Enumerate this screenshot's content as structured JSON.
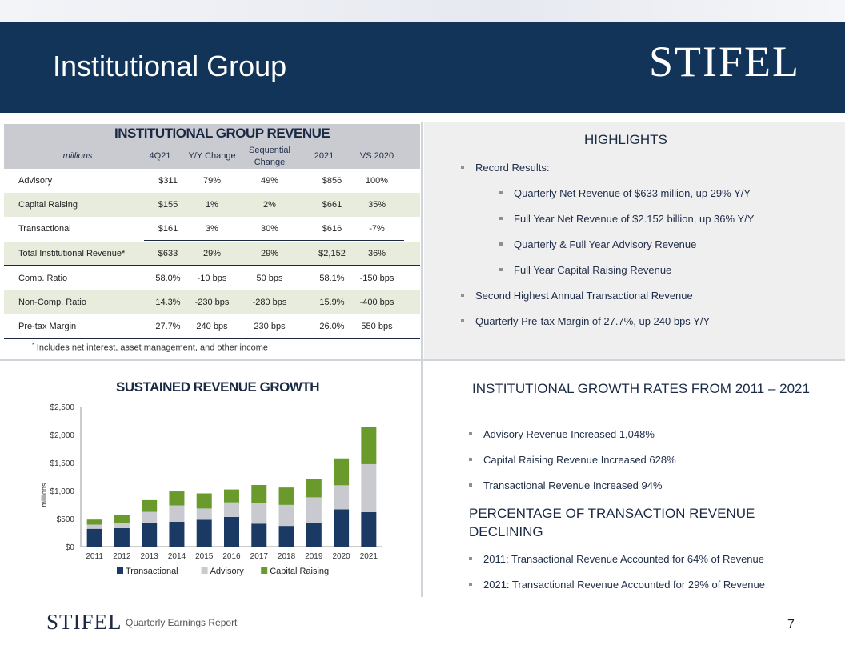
{
  "slide": {
    "title": "Institutional Group",
    "logo": "STIFEL",
    "footer_logo": "STIFEL",
    "footer_text": "Quarterly Earnings Report",
    "page_number": "7"
  },
  "table": {
    "title": "INSTITUTIONAL GROUP REVENUE",
    "headers": [
      "millions",
      "4Q21",
      "Y/Y Change",
      "Sequential Change",
      "2021",
      "VS 2020"
    ],
    "rows": [
      [
        "Advisory",
        "$311",
        "79%",
        "49%",
        "$856",
        "100%"
      ],
      [
        "Capital Raising",
        "$155",
        "1%",
        "2%",
        "$661",
        "35%"
      ],
      [
        "Transactional",
        "$161",
        "3%",
        "30%",
        "$616",
        "-7%"
      ],
      [
        "Total Institutional Revenue*",
        "$633",
        "29%",
        "29%",
        "$2,152",
        "36%"
      ],
      [
        "Comp. Ratio",
        "58.0%",
        "-10 bps",
        "50 bps",
        "58.1%",
        "-150 bps"
      ],
      [
        "Non-Comp. Ratio",
        "14.3%",
        "-230 bps",
        "-280 bps",
        "15.9%",
        "-400 bps"
      ],
      [
        "Pre-tax Margin",
        "27.7%",
        "240 bps",
        "230 bps",
        "26.0%",
        "550 bps"
      ]
    ],
    "footnote_mark": "*",
    "footnote": "Includes net interest, asset management, and other income"
  },
  "highlights": {
    "title": "HIGHLIGHTS",
    "items": [
      "Record Results:",
      "Quarterly Net Revenue of $633 million, up 29% Y/Y",
      "Full Year Net Revenue of $2.152 billion, up 36% Y/Y",
      "Quarterly & Full Year Advisory Revenue",
      "Full Year Capital Raising Revenue",
      "Second Highest Annual Transactional Revenue",
      "Quarterly Pre-tax Margin of 27.7%, up 240 bps Y/Y"
    ]
  },
  "growth": {
    "title": "INSTITUTIONAL GROWTH RATES FROM 2011 – 2021",
    "items": [
      "Advisory Revenue Increased 1,048%",
      "Capital Raising Revenue Increased 628%",
      "Transactional Revenue Increased 94%"
    ],
    "pct_title": "PERCENTAGE OF TRANSACTION REVENUE DECLINING",
    "pct_items": [
      "2011:  Transactional Revenue Accounted for 64% of Revenue",
      "2021:  Transactional Revenue Accounted for 29% of Revenue"
    ]
  },
  "chart_data": {
    "type": "bar",
    "stacked": true,
    "title": "SUSTAINED REVENUE GROWTH",
    "ylabel": "millions",
    "xlabel": "",
    "ylim": [
      0,
      2500
    ],
    "yticks": [
      "$0",
      "$500",
      "$1,000",
      "$1,500",
      "$2,000",
      "$2,500"
    ],
    "categories": [
      "2011",
      "2012",
      "2013",
      "2014",
      "2015",
      "2016",
      "2017",
      "2018",
      "2019",
      "2020",
      "2021"
    ],
    "series": [
      {
        "name": "Transactional",
        "color": "#1b3a63",
        "values": [
          318,
          330,
          420,
          445,
          480,
          530,
          410,
          370,
          420,
          665,
          616
        ]
      },
      {
        "name": "Advisory",
        "color": "#c8cad0",
        "values": [
          75,
          90,
          200,
          290,
          200,
          260,
          370,
          375,
          460,
          430,
          856
        ]
      },
      {
        "name": "Capital Raising",
        "color": "#6a9a2c",
        "values": [
          90,
          140,
          210,
          250,
          270,
          230,
          320,
          310,
          320,
          480,
          661
        ]
      }
    ],
    "legend_position": "bottom",
    "grid": false
  }
}
